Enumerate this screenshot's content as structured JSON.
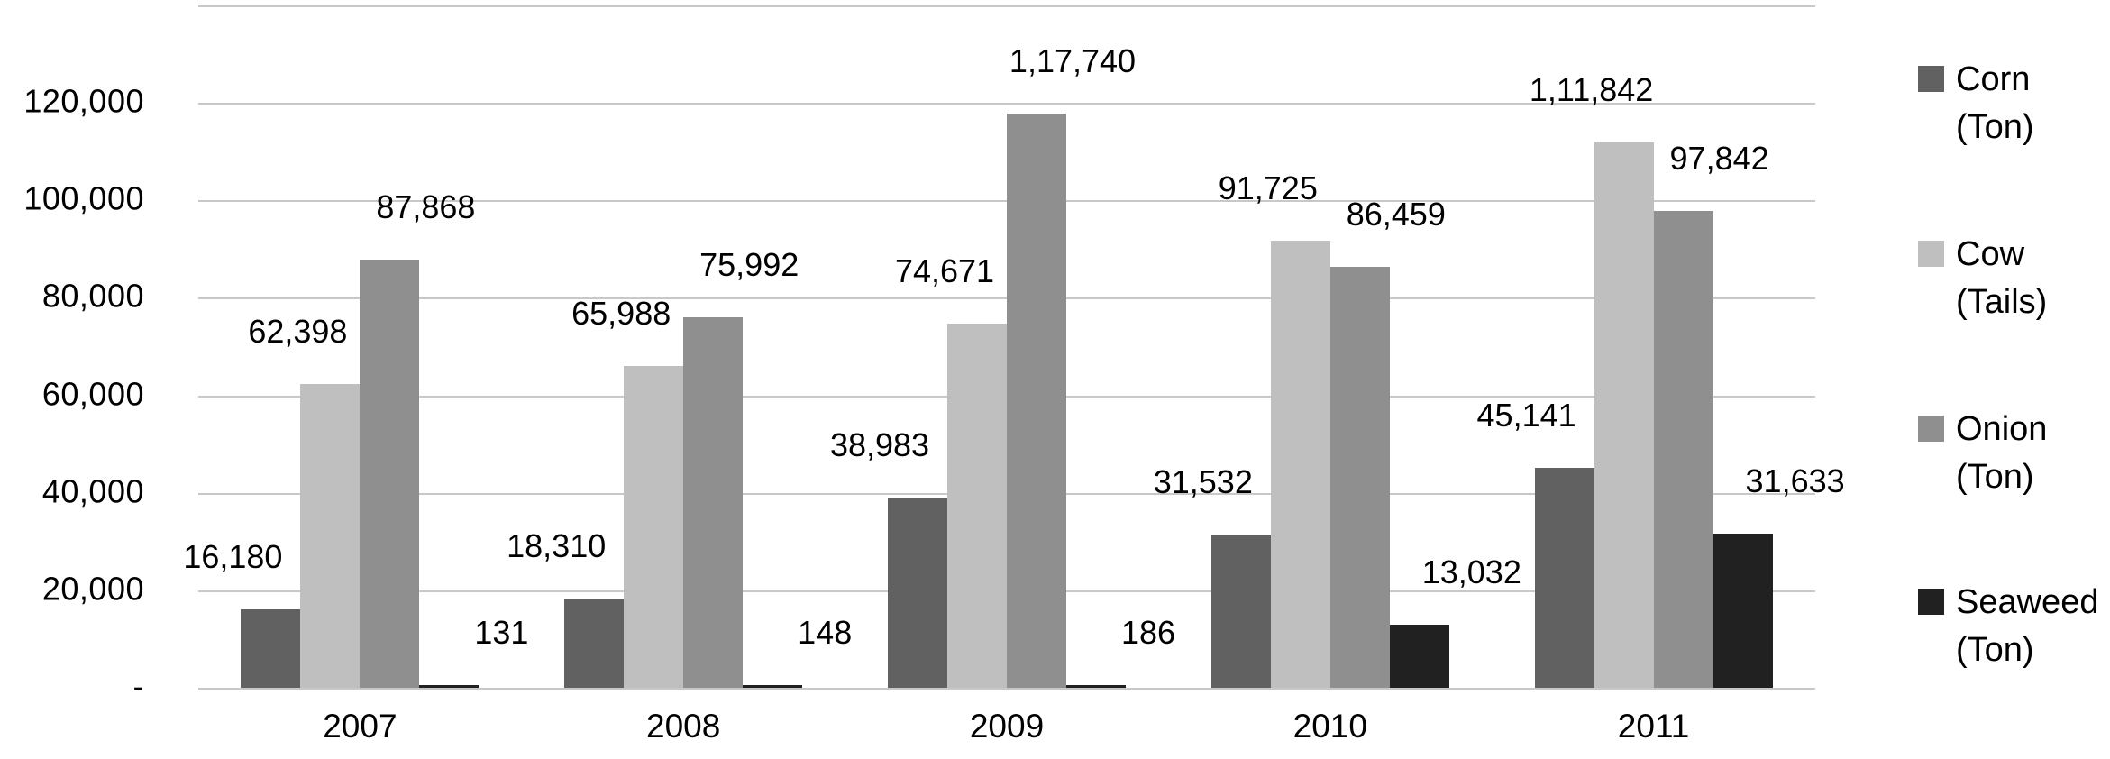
{
  "chart_data": {
    "type": "bar",
    "title": "",
    "categories": [
      "2007",
      "2008",
      "2009",
      "2010",
      "2011"
    ],
    "series": [
      {
        "name": "Corn (Ton)",
        "legend_lines": [
          "Corn",
          "(Ton)"
        ],
        "color": "#616161",
        "values": [
          16180,
          18310,
          38983,
          31532,
          45141
        ],
        "labels": [
          "16,180",
          "18,310",
          "38,983",
          "31,532",
          "45,141"
        ]
      },
      {
        "name": "Cow (Tails)",
        "legend_lines": [
          "Cow",
          "(Tails)"
        ],
        "color": "#bfbfbf",
        "values": [
          62398,
          65988,
          74671,
          91725,
          111842
        ],
        "labels": [
          "62,398",
          "65,988",
          "74,671",
          "91,725",
          "1,11,842"
        ]
      },
      {
        "name": "Onion (Ton)",
        "legend_lines": [
          "Onion",
          "(Ton)"
        ],
        "color": "#8f8f8f",
        "values": [
          87868,
          75992,
          117740,
          86459,
          97842
        ],
        "labels": [
          "87,868",
          "75,992",
          "1,17,740",
          "86,459",
          "97,842"
        ]
      },
      {
        "name": "Seaweed (Ton)",
        "legend_lines": [
          "Seaweed",
          "(Ton)"
        ],
        "color": "#212121",
        "values": [
          131,
          148,
          186,
          13032,
          31633
        ],
        "labels": [
          "131",
          "148",
          "186",
          "13,032",
          "31,633"
        ]
      }
    ],
    "y_axis": {
      "tick_labels": [
        "-",
        "20,000",
        "40,000",
        "60,000",
        "80,000",
        "100,000",
        "120,000"
      ],
      "tick_values": [
        0,
        20000,
        40000,
        60000,
        80000,
        100000,
        120000
      ],
      "min": 0,
      "max": 140000,
      "step": 20000
    },
    "xlabel": "",
    "ylabel": "",
    "grid": true,
    "legend_position": "right",
    "background_color": "#ffffff",
    "gridline_color": "#c8c8c8",
    "text_color": "#000000"
  }
}
